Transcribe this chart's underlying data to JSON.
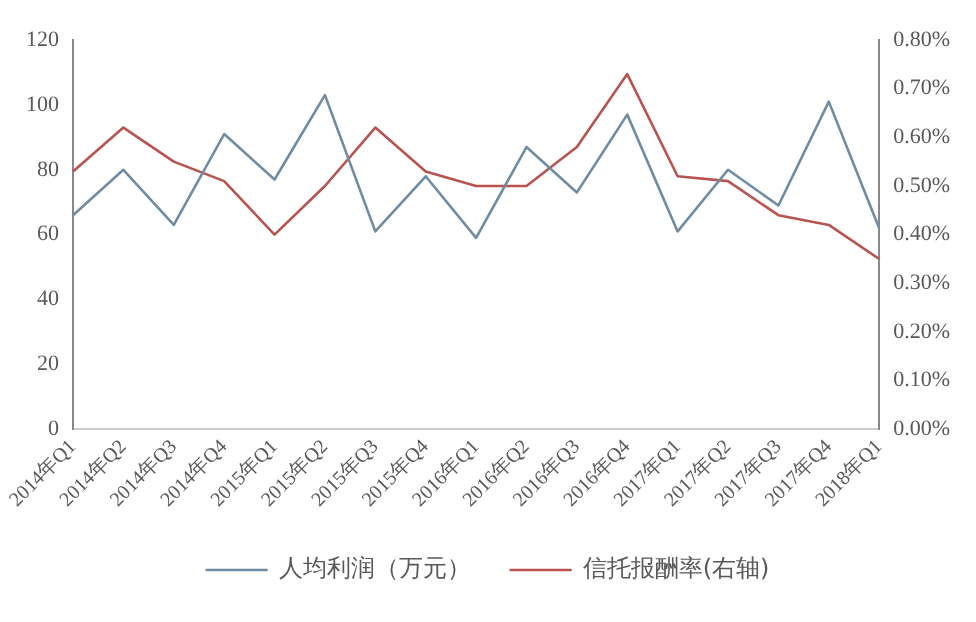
{
  "chart_data": {
    "type": "line",
    "categories": [
      "2014年Q1",
      "2014年Q2",
      "2014年Q3",
      "2014年Q4",
      "2015年Q1",
      "2015年Q2",
      "2015年Q3",
      "2015年Q4",
      "2016年Q1",
      "2016年Q2",
      "2016年Q3",
      "2016年Q4",
      "2017年Q1",
      "2017年Q2",
      "2017年Q3",
      "2017年Q4",
      "2018年Q1"
    ],
    "series": [
      {
        "name": "人均利润（万元）",
        "color": "#6f8ca3",
        "values": [
          66,
          80,
          63,
          91,
          77,
          103,
          61,
          78,
          59,
          87,
          73,
          97,
          61,
          80,
          69,
          101,
          62
        ]
      },
      {
        "name": "信托报酬率(右轴)",
        "color": "#b85450",
        "axis": "y2",
        "values": [
          0.53,
          0.62,
          0.55,
          0.51,
          0.4,
          0.5,
          0.62,
          0.53,
          0.5,
          0.5,
          0.58,
          0.73,
          0.52,
          0.51,
          0.44,
          0.42,
          0.35
        ]
      }
    ],
    "ylim": [
      0,
      120
    ],
    "yticks": [
      0,
      20,
      40,
      60,
      80,
      100,
      120
    ],
    "y2lim": [
      0,
      0.8
    ],
    "y2ticks": [
      {
        "value": 0,
        "label": "0.00%"
      },
      {
        "value": 0.1,
        "label": "0.10%"
      },
      {
        "value": 0.2,
        "label": "0.20%"
      },
      {
        "value": 0.3,
        "label": "0.30%"
      },
      {
        "value": 0.4,
        "label": "0.40%"
      },
      {
        "value": 0.5,
        "label": "0.50%"
      },
      {
        "value": 0.6,
        "label": "0.60%"
      },
      {
        "value": 0.7,
        "label": "0.70%"
      },
      {
        "value": 0.8,
        "label": "0.80%"
      }
    ],
    "grid": false,
    "legend": "bottom",
    "marker": "none",
    "line_style": "solid"
  }
}
